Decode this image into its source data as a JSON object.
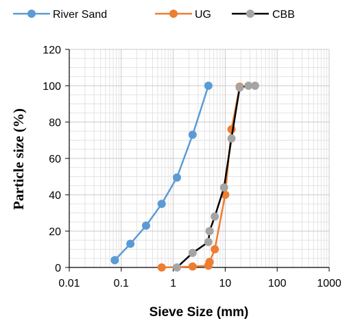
{
  "chart_data": {
    "type": "scatter",
    "xlabel": "Sieve Size (mm)",
    "ylabel": "Particle size (%)",
    "x_scale": "log",
    "xlim": [
      0.01,
      1000
    ],
    "ylim": [
      0,
      120
    ],
    "x_ticks": [
      "0.01",
      "0.1",
      "1",
      "10",
      "100",
      "1000"
    ],
    "y_ticks": [
      "0",
      "20",
      "40",
      "60",
      "80",
      "100",
      "120"
    ],
    "grid": true,
    "legend_position": "top",
    "series": [
      {
        "name": "River Sand",
        "color": "#5B9BD5",
        "x": [
          0.075,
          0.15,
          0.3,
          0.6,
          1.18,
          2.36,
          4.75
        ],
        "y": [
          4,
          13,
          23,
          35,
          49.5,
          73,
          100
        ]
      },
      {
        "name": "UG",
        "color": "#ED7D31",
        "x": [
          0.6,
          2.36,
          4.75,
          5.0,
          6.3,
          10,
          13.2,
          19
        ],
        "y": [
          0,
          0.5,
          1,
          3,
          10,
          40,
          76,
          99.5
        ]
      },
      {
        "name": "CBB",
        "color": "#000000",
        "marker_color": "#A5A5A5",
        "x": [
          1.18,
          2.36,
          4.75,
          5.0,
          6.3,
          9.5,
          13.2,
          19,
          28,
          37.5
        ],
        "y": [
          0,
          8,
          14,
          20,
          28,
          44,
          71,
          99,
          100,
          100
        ]
      }
    ]
  }
}
